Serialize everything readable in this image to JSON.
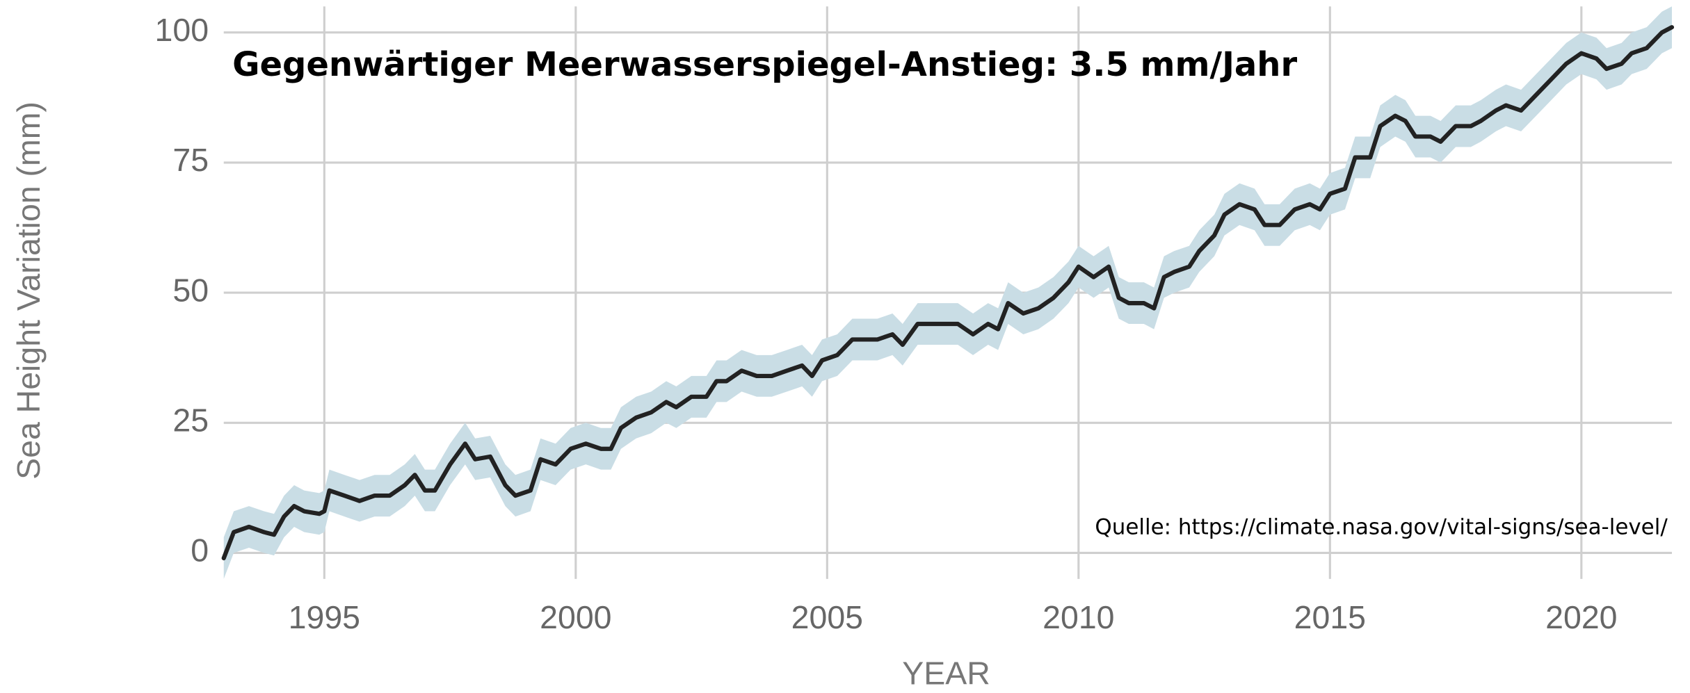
{
  "chart_data": {
    "type": "line",
    "title": "Gegenwärtiger Meerwasserspiegel-Anstieg: 3.5 mm/Jahr",
    "source": "Quelle: https://climate.nasa.gov/vital-signs/sea-level/",
    "y_label": "Sea Height Variation (mm)",
    "x_label": "YEAR",
    "color": "#222222",
    "band_color": "#c9dde5",
    "error": 4,
    "x": [
      1993.0,
      1993.2,
      1993.5,
      1993.8,
      1994.0,
      1994.2,
      1994.4,
      1994.6,
      1994.9,
      1995.0,
      1995.1,
      1995.4,
      1995.7,
      1996.0,
      1996.3,
      1996.6,
      1996.8,
      1997.0,
      1997.2,
      1997.5,
      1997.8,
      1998.0,
      1998.3,
      1998.6,
      1998.8,
      1999.1,
      1999.3,
      1999.6,
      1999.9,
      2000.2,
      2000.5,
      2000.7,
      2000.9,
      2001.2,
      2001.5,
      2001.8,
      2002.0,
      2002.3,
      2002.6,
      2002.8,
      2003.0,
      2003.3,
      2003.6,
      2003.9,
      2004.2,
      2004.5,
      2004.7,
      2004.9,
      2005.2,
      2005.5,
      2005.8,
      2006.0,
      2006.3,
      2006.5,
      2006.8,
      2007.0,
      2007.3,
      2007.6,
      2007.9,
      2008.2,
      2008.4,
      2008.6,
      2008.9,
      2009.2,
      2009.5,
      2009.8,
      2010.0,
      2010.3,
      2010.6,
      2010.8,
      2011.0,
      2011.3,
      2011.5,
      2011.7,
      2011.9,
      2012.2,
      2012.4,
      2012.7,
      2012.9,
      2013.2,
      2013.5,
      2013.7,
      2014.0,
      2014.3,
      2014.6,
      2014.8,
      2015.0,
      2015.3,
      2015.5,
      2015.8,
      2016.0,
      2016.3,
      2016.5,
      2016.7,
      2017.0,
      2017.2,
      2017.5,
      2017.8,
      2018.0,
      2018.3,
      2018.5,
      2018.8,
      2019.1,
      2019.4,
      2019.7,
      2020.0,
      2020.3,
      2020.5,
      2020.8,
      2021.0,
      2021.3,
      2021.6,
      2021.8
    ],
    "values": [
      -1,
      4,
      5,
      4,
      3.5,
      7,
      9,
      8,
      7.5,
      8,
      12,
      11,
      10,
      11,
      11,
      13,
      15,
      12,
      12,
      17,
      21,
      18,
      18.5,
      13,
      11,
      12,
      18,
      17,
      20,
      21,
      20,
      20,
      24,
      26,
      27,
      29,
      28,
      30,
      30,
      33,
      33,
      35,
      34,
      34,
      35,
      36,
      34,
      37,
      38,
      41,
      41,
      41,
      42,
      40,
      44,
      44,
      44,
      44,
      42,
      44,
      43,
      48,
      46,
      47,
      49,
      52,
      55,
      53,
      55,
      49,
      48,
      48,
      47,
      53,
      54,
      55,
      58,
      61,
      65,
      67,
      66,
      63,
      63,
      66,
      67,
      66,
      69,
      70,
      76,
      76,
      82,
      84,
      83,
      80,
      80,
      79,
      82,
      82,
      83,
      85,
      86,
      85,
      88,
      91,
      94,
      96,
      95,
      93,
      94,
      96,
      97,
      100,
      101
    ],
    "xlim": [
      1993,
      2021.8
    ],
    "ylim": [
      -5,
      105
    ],
    "xticks": [
      1995,
      2000,
      2005,
      2010,
      2015,
      2020
    ],
    "yticks": [
      0,
      25,
      50,
      75,
      100
    ],
    "grid": true
  }
}
